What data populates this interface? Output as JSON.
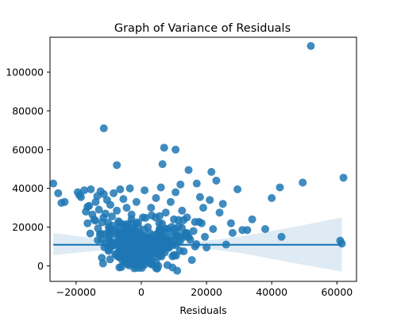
{
  "chart_data": {
    "type": "scatter",
    "title": "Graph of Variance of Residuals",
    "xlabel": "Residuals",
    "ylabel": "",
    "xlim": [
      -28000,
      66000
    ],
    "ylim": [
      -8000,
      118000
    ],
    "xticks": [
      -20000,
      0,
      20000,
      40000,
      60000
    ],
    "xtick_labels": [
      "−20000",
      "0",
      "20000",
      "40000",
      "60000"
    ],
    "yticks": [
      0,
      20000,
      40000,
      60000,
      80000,
      100000
    ],
    "ytick_labels": [
      "0",
      "20000",
      "40000",
      "60000",
      "80000",
      "100000"
    ],
    "grid": false,
    "legend": "none",
    "colors": {
      "points": "#1f77b4",
      "regression_line": "#1f77b4",
      "confidence_band": "#1f77b4"
    },
    "regression": {
      "x_range": [
        -27000,
        61500
      ],
      "y_start": 10900,
      "y_end": 10900
    },
    "confidence_band": [
      {
        "x": -27000,
        "low": 5500,
        "high": 17000
      },
      {
        "x": -15000,
        "low": 7600,
        "high": 14400
      },
      {
        "x": -2000,
        "low": 9700,
        "high": 12100
      },
      {
        "x": 5000,
        "low": 10300,
        "high": 11500
      },
      {
        "x": 15000,
        "low": 9800,
        "high": 12000
      },
      {
        "x": 30000,
        "low": 6800,
        "high": 15000
      },
      {
        "x": 45000,
        "low": 2000,
        "high": 19500
      },
      {
        "x": 61500,
        "low": -3000,
        "high": 25000
      }
    ],
    "points": [
      [
        -27000,
        42500
      ],
      [
        -25500,
        37500
      ],
      [
        -24500,
        32500
      ],
      [
        -23500,
        33000
      ],
      [
        -19500,
        38000
      ],
      [
        -19000,
        36500
      ],
      [
        -18500,
        35500
      ],
      [
        -17500,
        39000
      ],
      [
        -17000,
        28000
      ],
      [
        -16500,
        30500
      ],
      [
        -16000,
        31000
      ],
      [
        -15500,
        39500
      ],
      [
        -15000,
        26500
      ],
      [
        -14500,
        24000
      ],
      [
        -14000,
        33000
      ],
      [
        -13500,
        36000
      ],
      [
        -13000,
        29000
      ],
      [
        -12500,
        38500
      ],
      [
        -12000,
        22500
      ],
      [
        -11500,
        37000
      ],
      [
        -11500,
        71000
      ],
      [
        -11000,
        27000
      ],
      [
        -10500,
        34000
      ],
      [
        -10000,
        20000
      ],
      [
        -9500,
        31500
      ],
      [
        -9000,
        25500
      ],
      [
        -8500,
        37500
      ],
      [
        -8000,
        18500
      ],
      [
        -7500,
        52000
      ],
      [
        -7500,
        28500
      ],
      [
        -7000,
        23000
      ],
      [
        -6500,
        39500
      ],
      [
        -6000,
        16000
      ],
      [
        -5500,
        34500
      ],
      [
        -5000,
        21000
      ],
      [
        -4500,
        30000
      ],
      [
        -4000,
        14500
      ],
      [
        -3500,
        40000
      ],
      [
        -3000,
        26500
      ],
      [
        -2500,
        19500
      ],
      [
        -2000,
        12000
      ],
      [
        -1500,
        33000
      ],
      [
        -1000,
        22500
      ],
      [
        -500,
        17000
      ],
      [
        0,
        9000
      ],
      [
        500,
        25000
      ],
      [
        1000,
        39000
      ],
      [
        1500,
        14000
      ],
      [
        2000,
        20000
      ],
      [
        2500,
        6000
      ],
      [
        3000,
        30000
      ],
      [
        3500,
        11500
      ],
      [
        4000,
        16000
      ],
      [
        4500,
        35000
      ],
      [
        5000,
        8000
      ],
      [
        5500,
        22000
      ],
      [
        6000,
        40500
      ],
      [
        6500,
        52500
      ],
      [
        6500,
        13000
      ],
      [
        7000,
        61000
      ],
      [
        7500,
        27500
      ],
      [
        8000,
        19000
      ],
      [
        8500,
        9500
      ],
      [
        9000,
        33000
      ],
      [
        9500,
        15000
      ],
      [
        10000,
        24000
      ],
      [
        10500,
        38000
      ],
      [
        10500,
        60000
      ],
      [
        11000,
        -2500
      ],
      [
        11000,
        12000
      ],
      [
        11500,
        20500
      ],
      [
        12000,
        42000
      ],
      [
        12500,
        28500
      ],
      [
        13000,
        7500
      ],
      [
        13500,
        17000
      ],
      [
        14000,
        25000
      ],
      [
        14500,
        49500
      ],
      [
        15000,
        13500
      ],
      [
        15500,
        3000
      ],
      [
        16000,
        18000
      ],
      [
        16500,
        10000
      ],
      [
        17000,
        42500
      ],
      [
        18000,
        35500
      ],
      [
        18500,
        22000
      ],
      [
        19000,
        30000
      ],
      [
        19500,
        15000
      ],
      [
        20000,
        9500
      ],
      [
        21000,
        34000
      ],
      [
        21500,
        48500
      ],
      [
        22000,
        19000
      ],
      [
        23000,
        44000
      ],
      [
        24000,
        27500
      ],
      [
        25000,
        32000
      ],
      [
        26000,
        11000
      ],
      [
        27500,
        22000
      ],
      [
        28000,
        17000
      ],
      [
        29500,
        39500
      ],
      [
        31000,
        18500
      ],
      [
        32500,
        18500
      ],
      [
        34000,
        24000
      ],
      [
        38000,
        19000
      ],
      [
        40000,
        35000
      ],
      [
        42500,
        40500
      ],
      [
        43000,
        15000
      ],
      [
        49500,
        43000
      ],
      [
        52000,
        113500
      ],
      [
        61000,
        13000
      ],
      [
        61500,
        11500
      ],
      [
        62000,
        45500
      ]
    ],
    "cluster": {
      "center": [
        0,
        11000
      ],
      "spread_x": 5500,
      "spread_y": 5500,
      "count": 420
    }
  }
}
